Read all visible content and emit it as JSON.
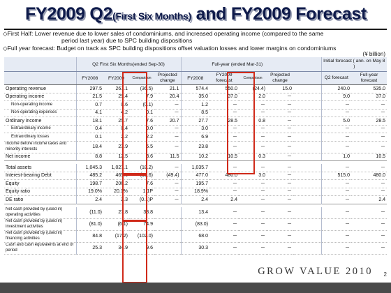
{
  "title": {
    "main": "FY2009 Q2",
    "sub": "(First Six Months)",
    "rest": " and FY2009 Forecast"
  },
  "bullets": {
    "b1": "◇First Half: Lower revenue due to lower sales of condominiums, and increased operating income (compared to the same",
    "b1b": "period last year) due to SPC building dispositions",
    "b2": "◇Full year forecast: Budget on track as SPC building dispositions offset valuation losses and lower margins on condominiums"
  },
  "unit": "(¥ billion)",
  "headers": {
    "q2_group": "Q2 First Six Months(ended Sep-30)",
    "fy_group": "Full-year (ended Mar-31)",
    "initial": "Initial forecast ( ann. on May 8 )",
    "fy2008": "FY2008",
    "fy2009": "FY2009",
    "comparison": "Comparison",
    "projected": "Projected change",
    "fy2008b": "FY2008",
    "fy2009f": "FY2009 forecast",
    "comparison2": "Comparison",
    "projected2": "Projected change",
    "init_q2": "Q2 forecast",
    "init_fy": "Full-year forecast"
  },
  "rows": [
    {
      "label": "Operating revenue",
      "v": [
        "297.5",
        "261.1",
        "(36.5)",
        "21.1",
        "574.4",
        "550.0",
        "(24.4)",
        "15.0",
        "240.0",
        "535.0"
      ]
    },
    {
      "label": "Operating income",
      "v": [
        "21.5",
        "29.4",
        "7.9",
        "20.4",
        "35.0",
        "37.0",
        "2.0",
        "－",
        "9.0",
        "37.0"
      ]
    },
    {
      "label": "Non-operating income",
      "v": [
        "0.7",
        "0.6",
        "(0.1)",
        "－",
        "1.2",
        "－",
        "－",
        "－",
        "－",
        "－"
      ]
    },
    {
      "label": "Non-operating expenses",
      "v": [
        "4.1",
        "4.2",
        "0.1",
        "－",
        "8.5",
        "－",
        "－",
        "－",
        "－",
        "－"
      ]
    },
    {
      "label": "Ordinary income",
      "v": [
        "18.1",
        "25.7",
        "7.6",
        "20.7",
        "27.7",
        "28.5",
        "0.8",
        "－",
        "5.0",
        "28.5"
      ]
    },
    {
      "label": "Extraordinary income",
      "v": [
        "0.4",
        "0.4",
        "0.0",
        "－",
        "3.0",
        "－",
        "－",
        "－",
        "－",
        "－"
      ]
    },
    {
      "label": "Extraordinary losses",
      "v": [
        "0.1",
        "2.2",
        "2.2",
        "－",
        "6.9",
        "－",
        "－",
        "－",
        "－",
        "－"
      ]
    },
    {
      "label": "Income before income taxes and minority interests",
      "v": [
        "18.4",
        "23.9",
        "5.5",
        "－",
        "23.8",
        "－",
        "－",
        "－",
        "－",
        "－"
      ]
    },
    {
      "label": "Net income",
      "v": [
        "8.8",
        "12.5",
        "3.6",
        "11.5",
        "10.2",
        "10.5",
        "0.3",
        "－",
        "1.0",
        "10.5"
      ]
    },
    {
      "label": "Total assets",
      "v": [
        "1,045.3",
        "1,027.1",
        "(18.2)",
        "－",
        "1,035.7",
        "－",
        "－",
        "－",
        "－",
        "－"
      ]
    },
    {
      "label": "Interest-bearing Debt",
      "v": [
        "485.2",
        "465.6",
        "(19.6)",
        "(49.4)",
        "477.0",
        "480.0",
        "3.0",
        "－",
        "515.0",
        "480.0"
      ]
    },
    {
      "label": "Equity",
      "v": [
        "198.7",
        "206.2",
        "7.6",
        "－",
        "195.7",
        "－",
        "－",
        "－",
        "－",
        "－"
      ]
    },
    {
      "label": "Equity ratio",
      "v": [
        "19.0%",
        "20.1%",
        "1.1P",
        "－",
        "18.9%",
        "－",
        "－",
        "－",
        "－",
        "－"
      ]
    },
    {
      "label": "DE ratio",
      "v": [
        "2.4",
        "2.3",
        "(0.1)P",
        "－",
        "2.4",
        "2.4",
        "－",
        "－",
        "－",
        "2.4"
      ]
    },
    {
      "label": "Net cash provided by (used in) operating activities",
      "v": [
        "(11.0)",
        "27.8",
        "38.8",
        "",
        "13.4",
        "－",
        "－",
        "－",
        "－",
        "－"
      ]
    },
    {
      "label": "Net cash provided by (used in) investment activities",
      "v": [
        "(81.0)",
        "(6.1)",
        "74.9",
        "",
        "(83.0)",
        "－",
        "－",
        "－",
        "－",
        "－"
      ]
    },
    {
      "label": "Net cash provided by (used in) financing activities",
      "v": [
        "84.8",
        "(17.2)",
        "(102.0)",
        "",
        "68.0",
        "－",
        "－",
        "－",
        "－",
        "－"
      ]
    },
    {
      "label": "Cash and cash equivalents at end of period",
      "v": [
        "25.3",
        "34.9",
        "9.6",
        "",
        "30.3",
        "－",
        "－",
        "－",
        "－",
        "－"
      ]
    }
  ],
  "footer": {
    "brand": "GROW VALUE 2010",
    "page": "2"
  }
}
